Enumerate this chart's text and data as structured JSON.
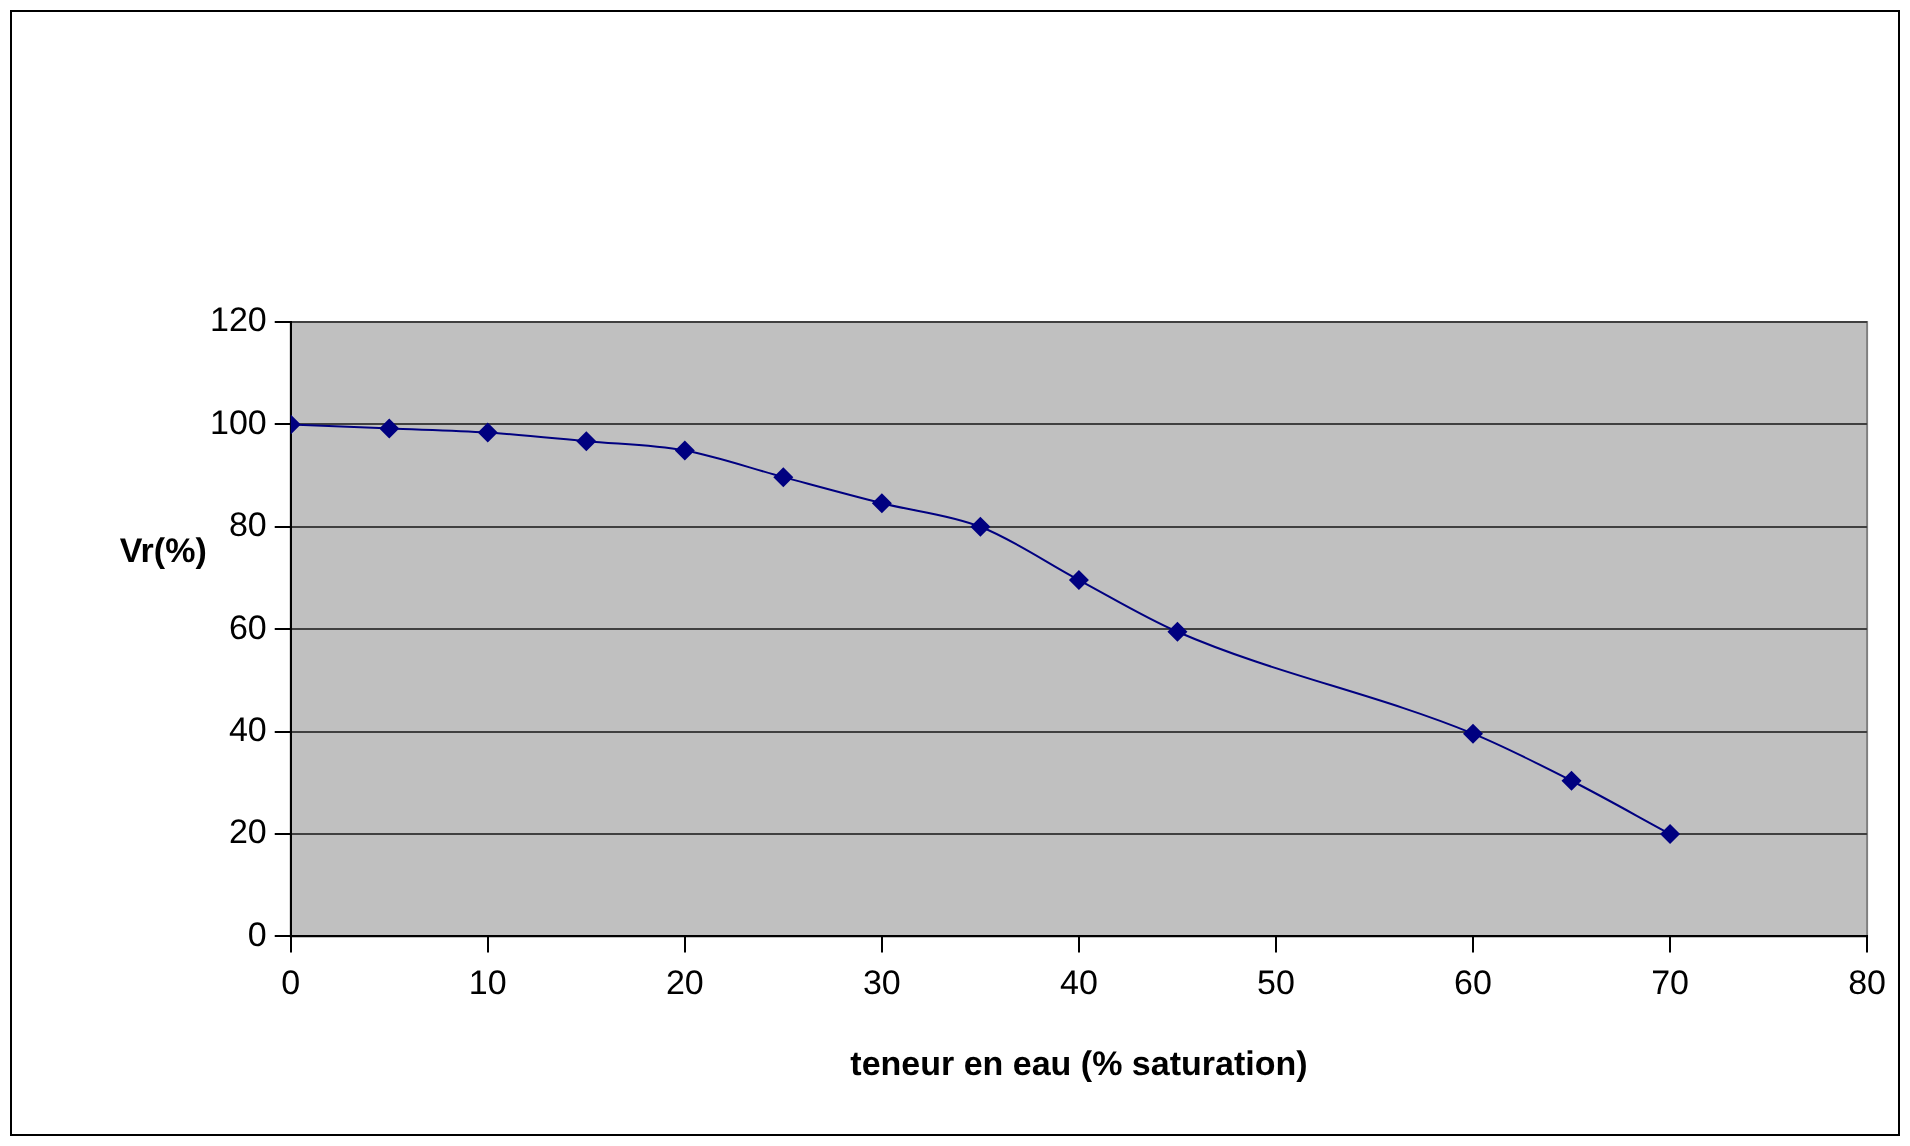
{
  "chart_data": {
    "type": "line",
    "xlabel": "teneur en eau (% saturation)",
    "ylabel": "Vr(%)",
    "x": [
      0,
      5,
      10,
      15,
      20,
      25,
      30,
      35,
      40,
      45,
      60,
      65,
      70
    ],
    "series": [
      {
        "color": "#000080",
        "values": [
          100,
          99.2,
          98.4,
          96.7,
          94.9,
          89.7,
          84.6,
          80,
          69.6,
          59.5,
          39.6,
          30.4,
          20
        ]
      }
    ],
    "xlim": [
      0,
      80
    ],
    "xticks": [
      0,
      10,
      20,
      30,
      40,
      50,
      60,
      70,
      80
    ],
    "ylim": [
      0,
      120
    ],
    "yticks": [
      0,
      20,
      40,
      60,
      80,
      100,
      120
    ],
    "grid": "y",
    "legend": false,
    "marker": "diamond",
    "line_style": "solid"
  }
}
